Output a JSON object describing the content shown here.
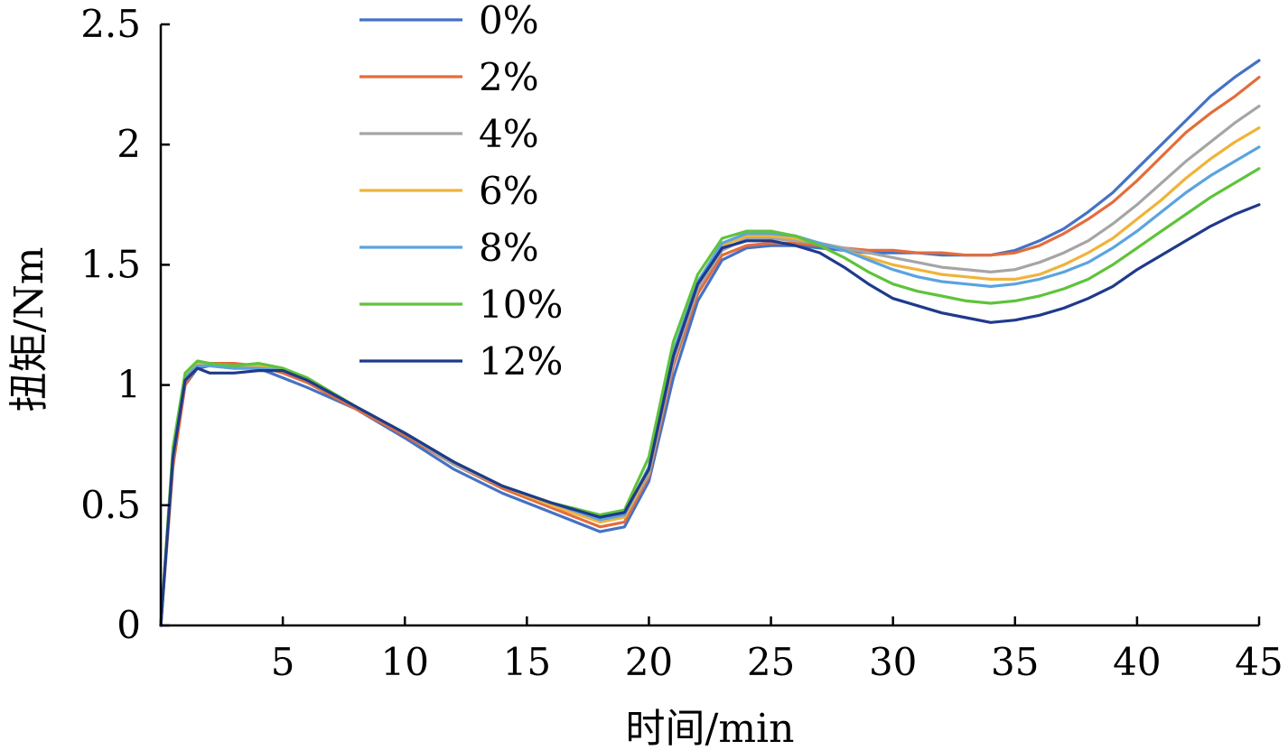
{
  "chart_data": {
    "type": "line",
    "title": "",
    "xlabel": "时间/min",
    "ylabel": "扭矩/Nm",
    "xlim": [
      0,
      45
    ],
    "ylim": [
      0,
      2.5
    ],
    "x_ticks": [
      5,
      10,
      15,
      20,
      25,
      30,
      35,
      40,
      45
    ],
    "x_tick_labels": [
      "5",
      "10",
      "15",
      "20",
      "25",
      "30",
      "35",
      "40",
      "45"
    ],
    "y_ticks": [
      0,
      0.5,
      1,
      1.5,
      2,
      2.5
    ],
    "y_tick_labels": [
      "0",
      "0.5",
      "1",
      "1.5",
      "2",
      "2.5"
    ],
    "grid": false,
    "legend_position": "top-center",
    "x": [
      0,
      0.5,
      1,
      1.5,
      2,
      3,
      4,
      5,
      6,
      8,
      10,
      12,
      14,
      16,
      18,
      19,
      20,
      21,
      22,
      23,
      24,
      25,
      26,
      27,
      28,
      29,
      30,
      31,
      32,
      33,
      34,
      35,
      36,
      37,
      38,
      39,
      40,
      41,
      42,
      43,
      44,
      45
    ],
    "series": [
      {
        "name": "0%",
        "color": "#4472C4",
        "values": [
          0,
          0.7,
          1.0,
          1.07,
          1.08,
          1.07,
          1.07,
          1.03,
          0.99,
          0.9,
          0.78,
          0.65,
          0.55,
          0.47,
          0.39,
          0.41,
          0.6,
          1.03,
          1.35,
          1.52,
          1.57,
          1.58,
          1.58,
          1.57,
          1.56,
          1.55,
          1.55,
          1.55,
          1.54,
          1.54,
          1.54,
          1.56,
          1.6,
          1.65,
          1.72,
          1.8,
          1.9,
          2.0,
          2.1,
          2.2,
          2.28,
          2.35
        ]
      },
      {
        "name": "2%",
        "color": "#E46C3C",
        "values": [
          0,
          0.66,
          1.0,
          1.08,
          1.09,
          1.09,
          1.08,
          1.05,
          1.01,
          0.9,
          0.79,
          0.67,
          0.57,
          0.49,
          0.41,
          0.43,
          0.62,
          1.08,
          1.38,
          1.54,
          1.58,
          1.59,
          1.59,
          1.58,
          1.57,
          1.56,
          1.56,
          1.55,
          1.55,
          1.54,
          1.54,
          1.55,
          1.58,
          1.63,
          1.69,
          1.76,
          1.85,
          1.95,
          2.05,
          2.13,
          2.2,
          2.28
        ]
      },
      {
        "name": "4%",
        "color": "#A5A5A5",
        "values": [
          0,
          0.7,
          1.02,
          1.09,
          1.08,
          1.08,
          1.08,
          1.06,
          1.02,
          0.91,
          0.8,
          0.67,
          0.58,
          0.5,
          0.43,
          0.45,
          0.63,
          1.1,
          1.4,
          1.56,
          1.61,
          1.61,
          1.6,
          1.59,
          1.57,
          1.55,
          1.53,
          1.51,
          1.49,
          1.48,
          1.47,
          1.48,
          1.51,
          1.55,
          1.6,
          1.67,
          1.75,
          1.84,
          1.93,
          2.01,
          2.09,
          2.16
        ]
      },
      {
        "name": "6%",
        "color": "#F0B33A",
        "values": [
          0,
          0.72,
          1.03,
          1.09,
          1.08,
          1.07,
          1.08,
          1.06,
          1.02,
          0.91,
          0.8,
          0.68,
          0.58,
          0.5,
          0.43,
          0.45,
          0.65,
          1.12,
          1.42,
          1.58,
          1.62,
          1.62,
          1.61,
          1.59,
          1.56,
          1.53,
          1.5,
          1.48,
          1.46,
          1.45,
          1.44,
          1.44,
          1.46,
          1.5,
          1.55,
          1.61,
          1.69,
          1.77,
          1.86,
          1.94,
          2.01,
          2.07
        ]
      },
      {
        "name": "8%",
        "color": "#5BA3E0",
        "values": [
          0,
          0.71,
          1.03,
          1.08,
          1.08,
          1.07,
          1.07,
          1.06,
          1.02,
          0.91,
          0.8,
          0.68,
          0.58,
          0.51,
          0.44,
          0.46,
          0.66,
          1.14,
          1.43,
          1.59,
          1.63,
          1.63,
          1.62,
          1.59,
          1.56,
          1.52,
          1.48,
          1.45,
          1.43,
          1.42,
          1.41,
          1.42,
          1.44,
          1.47,
          1.51,
          1.57,
          1.64,
          1.72,
          1.8,
          1.87,
          1.93,
          1.99
        ]
      },
      {
        "name": "10%",
        "color": "#5FC33B",
        "values": [
          0,
          0.74,
          1.05,
          1.1,
          1.09,
          1.08,
          1.09,
          1.07,
          1.03,
          0.91,
          0.8,
          0.68,
          0.58,
          0.51,
          0.46,
          0.48,
          0.7,
          1.18,
          1.46,
          1.61,
          1.64,
          1.64,
          1.62,
          1.58,
          1.53,
          1.47,
          1.42,
          1.39,
          1.37,
          1.35,
          1.34,
          1.35,
          1.37,
          1.4,
          1.44,
          1.5,
          1.57,
          1.64,
          1.71,
          1.78,
          1.84,
          1.9
        ]
      },
      {
        "name": "12%",
        "color": "#1F3A8C",
        "values": [
          0,
          0.7,
          1.02,
          1.07,
          1.05,
          1.05,
          1.06,
          1.06,
          1.02,
          0.91,
          0.8,
          0.68,
          0.58,
          0.51,
          0.45,
          0.47,
          0.65,
          1.12,
          1.42,
          1.57,
          1.6,
          1.6,
          1.58,
          1.55,
          1.49,
          1.42,
          1.36,
          1.33,
          1.3,
          1.28,
          1.26,
          1.27,
          1.29,
          1.32,
          1.36,
          1.41,
          1.48,
          1.54,
          1.6,
          1.66,
          1.71,
          1.75
        ]
      }
    ]
  }
}
